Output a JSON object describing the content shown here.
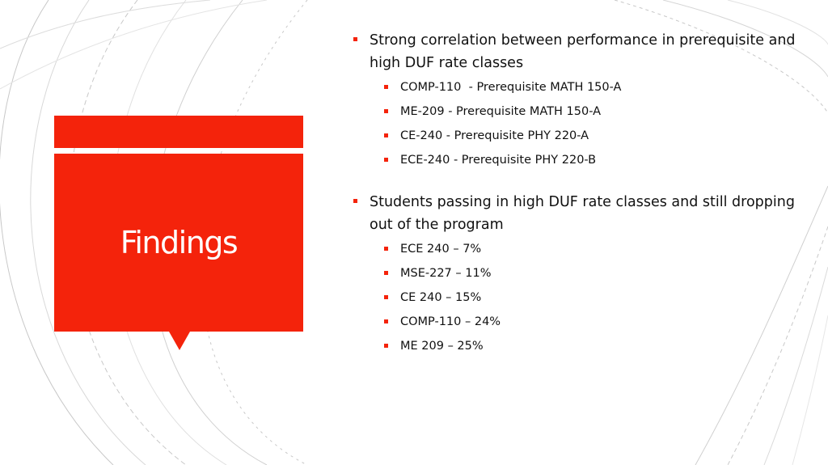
{
  "slide": {
    "title": "Findings",
    "accent_color": "#f4230b"
  },
  "bullets": [
    {
      "text": "Strong correlation between performance in prerequisite and high DUF rate classes",
      "sub": [
        "COMP-110  - Prerequisite MATH 150-A",
        "ME-209 - Prerequisite MATH 150-A",
        "CE-240 - Prerequisite PHY 220-A",
        "ECE-240 - Prerequisite PHY 220-B"
      ]
    },
    {
      "text": "Students passing in high DUF rate classes and still dropping out of the program",
      "sub": [
        "ECE 240 – 7%",
        "MSE-227 – 11%",
        "CE 240 – 15%",
        "COMP-110 – 24%",
        "ME 209 – 25%"
      ]
    }
  ]
}
